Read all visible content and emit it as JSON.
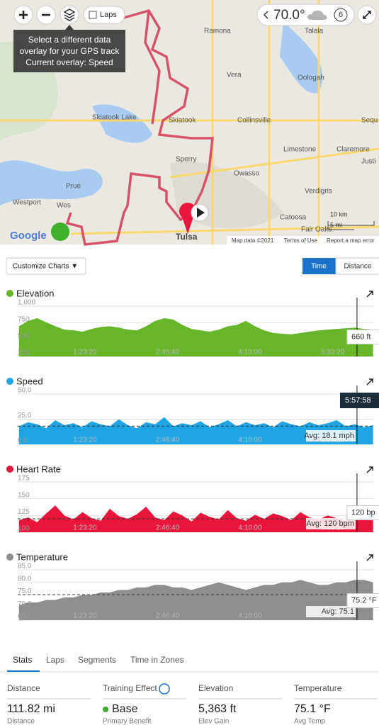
{
  "map": {
    "labels": [
      "Ramona",
      "Talala",
      "Vera",
      "Oologah",
      "Skiatook Lake",
      "Skiatook",
      "Collinsville",
      "Sperry",
      "Limestone",
      "Claremore",
      "Owasso",
      "Prue",
      "Westport",
      "Verdigris",
      "Catoosa",
      "Fair Oaks",
      "Tulsa",
      "Sequ",
      "Justi",
      "Wes"
    ],
    "weather": {
      "temp": "70.0°",
      "count": "6"
    },
    "tooltip": {
      "line1": "Select a different data",
      "line2": "overlay for your GPS track",
      "line3": "Current overlay: Speed"
    },
    "laps": "Laps",
    "scale": [
      "10 km",
      "5 mi"
    ],
    "attribution": [
      "Map data ©2021",
      "Terms of Use",
      "Report a map error"
    ],
    "logo": "Google"
  },
  "controls": {
    "customize": "Customize Charts ▼",
    "time": "Time",
    "distance": "Distance"
  },
  "charts": {
    "xlim": [
      923,
      22510
    ],
    "xticks": [
      {
        "value": 5000,
        "label": "1:23:20"
      },
      {
        "value": 10000,
        "label": "2:46:40"
      },
      {
        "value": 15000,
        "label": "4:10:00"
      },
      {
        "value": 20000,
        "label": "5:33:20"
      }
    ],
    "cursor": {
      "value": 21478,
      "label": "5:57:58"
    },
    "x": [
      1000,
      1550,
      2100,
      2650,
      3200,
      3750,
      4300,
      4850,
      5400,
      5950,
      6500,
      7050,
      7600,
      8150,
      8700,
      9250,
      9800,
      10350,
      10900,
      11450,
      12000,
      12550,
      13100,
      13650,
      14200,
      14750,
      15300,
      15850,
      16400,
      16950,
      17500,
      18050,
      18600,
      19150,
      19700,
      20250,
      20800,
      21350,
      21900,
      22450
    ],
    "items": [
      {
        "type": "area",
        "title": "Elevation",
        "color": "#67b52b",
        "ylim": [
          250,
          1000
        ],
        "yticks": [
          {
            "value": 1000,
            "label": "1,000"
          },
          750,
          500,
          250
        ],
        "values": [
          700,
          780,
          820,
          760,
          700,
          650,
          640,
          620,
          660,
          690,
          700,
          680,
          650,
          640,
          700,
          780,
          820,
          800,
          720,
          660,
          640,
          620,
          650,
          700,
          720,
          780,
          700,
          640,
          600,
          590,
          580,
          600,
          620,
          640,
          650,
          660,
          670,
          680,
          660,
          650
        ],
        "hover_label": "660 ft"
      },
      {
        "type": "area",
        "title": "Speed",
        "color": "#1fa4e4",
        "ylim": [
          0,
          50
        ],
        "yticks": [
          {
            "value": 50,
            "label": "50.0"
          },
          {
            "value": 25,
            "label": "25.0"
          },
          {
            "value": 0,
            "label": "0.0"
          }
        ],
        "values": [
          18,
          22,
          20,
          16,
          24,
          19,
          21,
          17,
          23,
          20,
          18,
          25,
          19,
          16,
          22,
          20,
          27,
          18,
          21,
          19,
          23,
          17,
          20,
          24,
          18,
          22,
          19,
          21,
          17,
          23,
          20,
          18,
          22,
          19,
          21,
          24,
          18,
          20,
          17,
          19
        ],
        "avg": 18.1,
        "avg_label": "Avg: 18.1 mph"
      },
      {
        "type": "area",
        "title": "Heart Rate",
        "color": "#e8163c",
        "ylim": [
          100,
          175
        ],
        "yticks": [
          175,
          150,
          125,
          100
        ],
        "values": [
          118,
          122,
          115,
          128,
          140,
          125,
          119,
          130,
          121,
          117,
          135,
          124,
          120,
          127,
          138,
          122,
          118,
          131,
          125,
          116,
          129,
          123,
          119,
          133,
          121,
          117,
          126,
          120,
          128,
          124,
          118,
          130,
          122,
          119,
          125,
          121,
          117,
          123,
          120,
          118
        ],
        "avg": 120,
        "avg_label": "Avg: 120 bpm",
        "hover_label": "120 bp"
      },
      {
        "type": "area",
        "title": "Temperature",
        "color": "#8e8e8e",
        "ylim": [
          65,
          85
        ],
        "yticks": [
          {
            "value": 85,
            "label": "85.0"
          },
          {
            "value": 80,
            "label": "80.0"
          },
          {
            "value": 75,
            "label": "75.0"
          },
          {
            "value": 70,
            "label": "70.0"
          },
          {
            "value": 65,
            "label": "65.0"
          }
        ],
        "values": [
          71,
          72,
          72,
          73,
          73,
          74,
          74,
          75,
          75,
          76,
          76,
          77,
          77,
          78,
          78,
          79,
          79,
          78,
          78,
          77,
          78,
          79,
          80,
          79,
          78,
          77,
          78,
          79,
          79,
          80,
          80,
          81,
          80,
          79,
          79,
          80,
          80,
          81,
          81,
          80
        ],
        "avg": 75.1,
        "avg_label": "Avg: 75.1",
        "hover_label": "75.2 °F"
      }
    ]
  },
  "tabs": [
    "Stats",
    "Laps",
    "Segments",
    "Time in Zones"
  ],
  "stats": [
    {
      "header": "Distance",
      "value": "111.82 mi",
      "sub": "Distance"
    },
    {
      "header": "Training Effect",
      "value": "Base",
      "sub": "Primary Benefit"
    },
    {
      "header": "Elevation",
      "value": "5,363 ft",
      "sub": "Elev Gain"
    },
    {
      "header": "Temperature",
      "value": "75.1 °F",
      "sub": "Avg Temp"
    }
  ]
}
